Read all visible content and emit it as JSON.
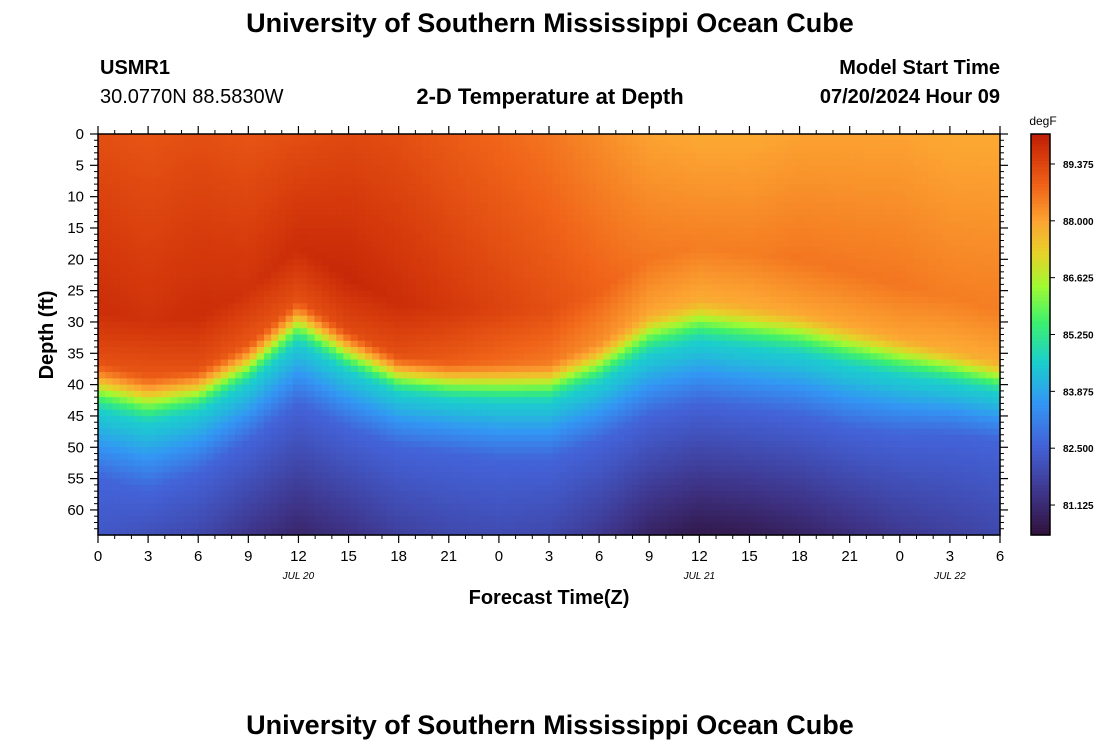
{
  "page": {
    "title": "University of Southern Mississippi Ocean Cube",
    "footer_title": "University of Southern Mississippi Ocean Cube",
    "station_id": "USMR1",
    "station_coords": "30.0770N  88.5830W",
    "model_start_label": "Model Start Time",
    "model_start_value": "07/20/2024 Hour 09"
  },
  "chart_data": {
    "type": "heatmap",
    "title": "2-D Temperature at Depth",
    "xlabel": "Forecast Time(Z)",
    "ylabel": "Depth (ft)",
    "x_tick_labels": [
      "0",
      "3",
      "6",
      "9",
      "12",
      "15",
      "18",
      "21",
      "0",
      "3",
      "6",
      "9",
      "12",
      "15",
      "18",
      "21",
      "0",
      "3",
      "6"
    ],
    "date_labels": [
      {
        "label": "JUL 20",
        "at_tick_index": 4
      },
      {
        "label": "JUL 21",
        "at_tick_index": 12
      },
      {
        "label": "JUL 22",
        "at_tick_index": 17
      }
    ],
    "y_ticks": [
      0,
      5,
      10,
      15,
      20,
      25,
      30,
      35,
      40,
      45,
      50,
      55,
      60
    ],
    "ylim": [
      0,
      64
    ],
    "forecast_hours_range": [
      0,
      54
    ],
    "colorbar": {
      "unit": "degF",
      "ticks": [
        "89.375",
        "88.000",
        "86.625",
        "85.250",
        "83.875",
        "82.500",
        "81.125"
      ],
      "vmin": 80.4,
      "vmax": 90.1
    },
    "thermocline": {
      "hours": [
        0,
        3,
        6,
        9,
        12,
        15,
        18,
        21,
        24,
        27,
        30,
        33,
        36,
        39,
        42,
        45,
        48,
        51,
        54
      ],
      "top_depth_ft": [
        36,
        38,
        37,
        33,
        26,
        31,
        35,
        36,
        36,
        36,
        33,
        28,
        26,
        27,
        28,
        30,
        32,
        34,
        36
      ],
      "bottom_depth_ft": [
        55,
        57,
        54,
        49,
        43,
        47,
        50,
        51,
        52,
        52,
        49,
        45,
        43,
        44,
        45,
        47,
        48,
        48,
        49
      ]
    },
    "surface_temp_degF": {
      "hours": [
        0,
        3,
        6,
        9,
        12,
        15,
        18,
        21,
        24,
        27,
        30,
        33,
        36,
        39,
        42,
        45,
        48,
        51,
        54
      ],
      "values": [
        89.2,
        89.1,
        89.2,
        89.1,
        89.2,
        89.3,
        89.2,
        89.0,
        88.8,
        88.6,
        88.3,
        88.0,
        87.9,
        87.9,
        88.0,
        88.0,
        88.0,
        87.9,
        87.9
      ]
    },
    "deep_temp_degF": {
      "hours": [
        0,
        3,
        6,
        9,
        12,
        15,
        18,
        21,
        24,
        27,
        30,
        33,
        36,
        39,
        42,
        45,
        48,
        51,
        54
      ],
      "values": [
        82.3,
        82.1,
        81.9,
        81.4,
        81.0,
        81.3,
        81.7,
        81.9,
        82.0,
        81.9,
        81.5,
        80.9,
        80.6,
        80.7,
        80.9,
        81.2,
        81.5,
        81.7,
        81.9
      ]
    }
  }
}
